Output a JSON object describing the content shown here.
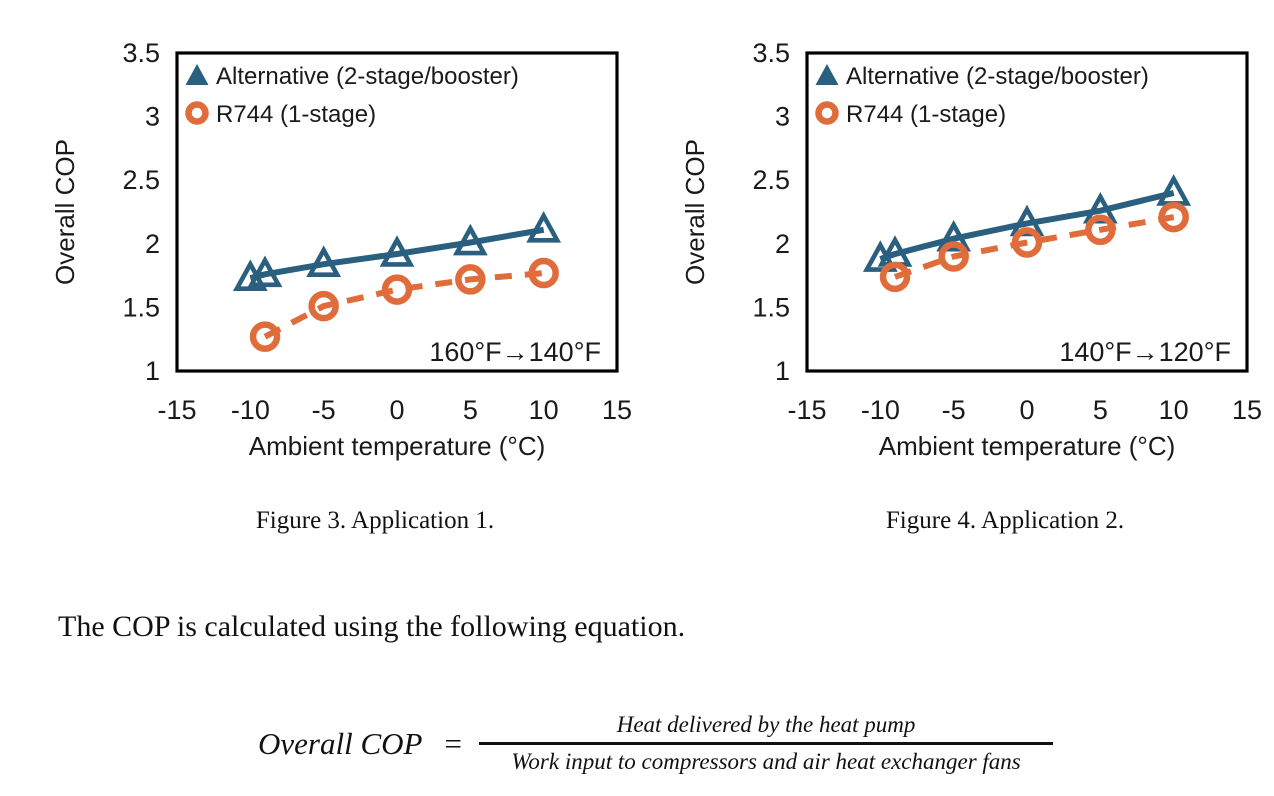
{
  "colors": {
    "alternative": "#2A5F80",
    "r744": "#E16C3B",
    "text": "#1A1A1A",
    "axis": "#000000",
    "background": "#FFFFFF"
  },
  "chart_data": [
    {
      "type": "line",
      "caption": "Figure 3. Application 1.",
      "annotation": "160°F→140°F",
      "xlabel": "Ambient temperature (°C)",
      "ylabel": "Overall COP",
      "xlim": [
        -15,
        15
      ],
      "ylim": [
        1,
        3.5
      ],
      "x_tick_values": [
        -15,
        -10,
        -5,
        0,
        5,
        10,
        15
      ],
      "x_ticks": [
        "-15",
        "-10",
        "-5",
        "0",
        "5",
        "10",
        "15"
      ],
      "y_tick_values": [
        1,
        1.5,
        2,
        2.5,
        3,
        3.5
      ],
      "y_ticks": [
        "1",
        "1.5",
        "2",
        "2.5",
        "3",
        "3.5"
      ],
      "grid": false,
      "legend_position": "top-left",
      "series": [
        {
          "name": "Alternative (2-stage/booster)",
          "marker": "triangle",
          "line": "solid",
          "color_key": "alternative",
          "points": [
            [
              -10,
              1.73
            ],
            [
              -9,
              1.76
            ],
            [
              -5,
              1.84
            ],
            [
              0,
              1.92
            ],
            [
              5,
              2.01
            ],
            [
              10,
              2.11
            ]
          ]
        },
        {
          "name": "R744 (1-stage)",
          "marker": "circle",
          "line": "dashed",
          "color_key": "r744",
          "points": [
            [
              -9,
              1.27
            ],
            [
              -5,
              1.51
            ],
            [
              0,
              1.64
            ],
            [
              5,
              1.72
            ],
            [
              10,
              1.77
            ]
          ]
        }
      ]
    },
    {
      "type": "line",
      "caption": "Figure 4. Application 2.",
      "annotation": "140°F→120°F",
      "xlabel": "Ambient temperature (°C)",
      "ylabel": "Overall COP",
      "xlim": [
        -15,
        15
      ],
      "ylim": [
        1,
        3.5
      ],
      "x_tick_values": [
        -15,
        -10,
        -5,
        0,
        5,
        10,
        15
      ],
      "x_ticks": [
        "-15",
        "-10",
        "-5",
        "0",
        "5",
        "10",
        "15"
      ],
      "y_tick_values": [
        1,
        1.5,
        2,
        2.5,
        3,
        3.5
      ],
      "y_ticks": [
        "1",
        "1.5",
        "2",
        "2.5",
        "3",
        "3.5"
      ],
      "grid": false,
      "legend_position": "top-left",
      "series": [
        {
          "name": "Alternative (2-stage/booster)",
          "marker": "triangle",
          "line": "solid",
          "color_key": "alternative",
          "points": [
            [
              -10,
              1.88
            ],
            [
              -9,
              1.92
            ],
            [
              -5,
              2.04
            ],
            [
              0,
              2.16
            ],
            [
              5,
              2.26
            ],
            [
              10,
              2.4
            ]
          ]
        },
        {
          "name": "R744 (1-stage)",
          "marker": "circle",
          "line": "dashed",
          "color_key": "r744",
          "points": [
            [
              -9,
              1.74
            ],
            [
              -5,
              1.9
            ],
            [
              0,
              2.01
            ],
            [
              5,
              2.11
            ],
            [
              10,
              2.21
            ]
          ]
        }
      ]
    }
  ],
  "body_text": "The COP is calculated using the following equation.",
  "equation": {
    "lhs": "Overall COP",
    "equals": "=",
    "numerator": "Heat delivered by the heat pump",
    "denominator": "Work input to compressors and air heat exchanger fans"
  }
}
